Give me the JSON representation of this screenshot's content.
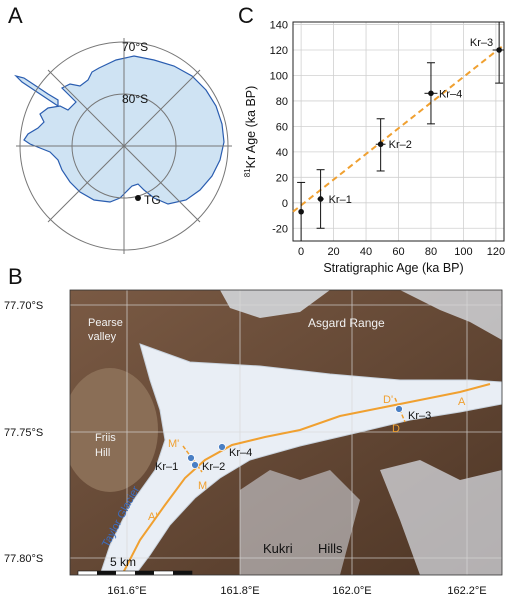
{
  "figure": {
    "panel_labels": {
      "a": "A",
      "b": "B",
      "c": "C"
    }
  },
  "panel_a": {
    "lat_labels": [
      "70°S",
      "80°S"
    ],
    "site_label": "TG",
    "land_color": "#cfe3f3",
    "coast_color": "#2a5db0"
  },
  "chart_data": {
    "type": "scatter",
    "title": "",
    "xlabel": "Stratigraphic Age (ka BP)",
    "ylabel": "81Kr Age (ka BP)",
    "ylabel_superscript": "81",
    "ylabel_main": "Kr Age (ka BP)",
    "xlim": [
      -5,
      125
    ],
    "ylim": [
      -30,
      142
    ],
    "xticks": [
      0,
      20,
      40,
      60,
      80,
      100,
      120
    ],
    "yticks": [
      -20,
      0,
      20,
      40,
      60,
      80,
      100,
      120,
      140
    ],
    "grid": true,
    "fit_line": {
      "x": [
        -5,
        125
      ],
      "y": [
        -7,
        124
      ],
      "color": "#f0a030",
      "style": "dashed"
    },
    "series": [
      {
        "points": [
          {
            "x": 0,
            "y": -7,
            "yerr_low": 23,
            "yerr_high": 23,
            "xerr": 0,
            "label": ""
          },
          {
            "x": 12,
            "y": 3,
            "yerr_low": 23,
            "yerr_high": 23,
            "xerr": 2,
            "label": "Kr–1"
          },
          {
            "x": 49,
            "y": 46,
            "yerr_low": 21,
            "yerr_high": 20,
            "xerr": 3,
            "label": "Kr–2"
          },
          {
            "x": 80,
            "y": 86,
            "yerr_low": 24,
            "yerr_high": 24,
            "xerr": 4,
            "label": "Kr–4"
          },
          {
            "x": 122,
            "y": 120,
            "yerr_low": 26,
            "yerr_high": 24,
            "xerr": 4,
            "label": "Kr–3"
          }
        ]
      }
    ]
  },
  "panel_b": {
    "lat_labels": [
      "77.70°S",
      "77.75°S",
      "77.80°S"
    ],
    "lon_labels": [
      "161.6°E",
      "161.8°E",
      "162.0°E",
      "162.2°E"
    ],
    "place_labels": {
      "pearse": [
        "Pearse",
        "valley"
      ],
      "asgard": "Asgard Range",
      "friis": [
        "Friis",
        "Hill"
      ],
      "taylor": "Taylor Glacier",
      "kukri": "Kukri",
      "hills": "Hills"
    },
    "sample_labels": [
      "Kr–1",
      "Kr–2",
      "Kr–4",
      "Kr–3"
    ],
    "section_labels": {
      "m_prime": "M'",
      "m": "M",
      "d_prime": "D'",
      "d": "D",
      "a": "A",
      "a_prime": "A'"
    },
    "scale_label": "5 km",
    "profile_color": "#f0a030",
    "glacier_color": "#e9eef5",
    "rock_color": "#6b4a34"
  }
}
